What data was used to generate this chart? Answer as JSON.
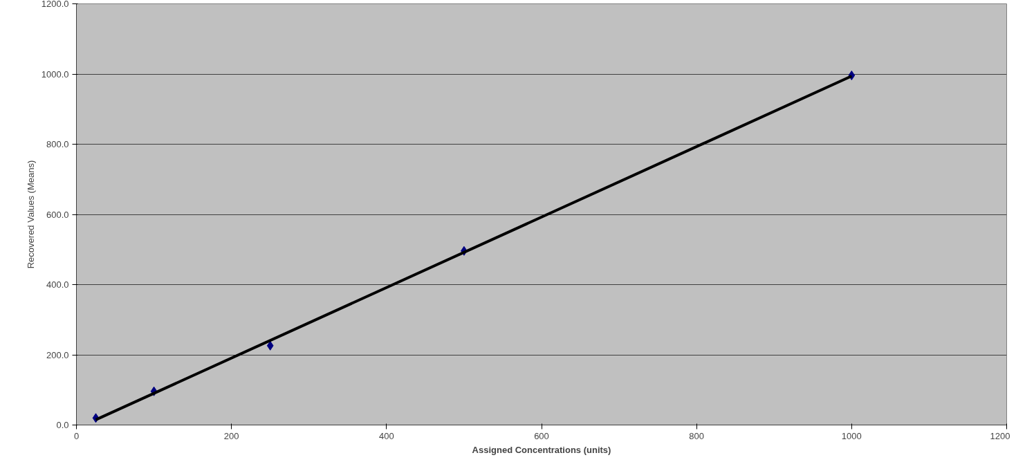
{
  "chart_data": {
    "type": "scatter",
    "xlabel": "Assigned Concentrations (units)",
    "ylabel": "Recovered Values (Means)",
    "xlim": [
      0,
      1200
    ],
    "ylim": [
      0,
      1200
    ],
    "xticks": [
      0,
      200,
      400,
      600,
      800,
      1000,
      1200
    ],
    "yticks": [
      {
        "value": 0,
        "label": "0.0"
      },
      {
        "value": 200,
        "label": "200.0"
      },
      {
        "value": 400,
        "label": "400.0"
      },
      {
        "value": 600,
        "label": "600.0"
      },
      {
        "value": 800,
        "label": "800.0"
      },
      {
        "value": 1000,
        "label": "1000.0"
      },
      {
        "value": 1200,
        "label": "1200.0"
      }
    ],
    "grid": "y",
    "marker": "diamond",
    "series": [
      {
        "color": "#000080",
        "x": [
          25,
          100,
          250,
          500,
          1000
        ],
        "values": [
          20,
          96,
          226,
          496,
          996
        ]
      },
      {
        "type": "line",
        "color": "#000000",
        "x": [
          25,
          1000
        ],
        "values": [
          15,
          994
        ],
        "marker": "none",
        "line_style": "solid"
      }
    ]
  }
}
